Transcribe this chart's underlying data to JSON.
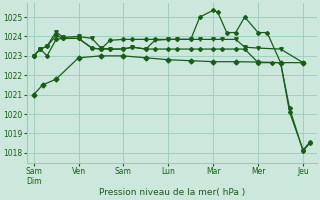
{
  "background_color": "#cce8dc",
  "grid_color": "#99ccbb",
  "line_color": "#1a5c1a",
  "xlabel": "Pression niveau de la mer( hPa )",
  "ylim": [
    1017.5,
    1025.7
  ],
  "yticks": [
    1018,
    1019,
    1020,
    1021,
    1022,
    1023,
    1024,
    1025
  ],
  "xtick_labels": [
    "Sam\nDim",
    "Ven",
    "Sam",
    "Lun",
    "Mar",
    "Mer",
    "Jeu"
  ],
  "xtick_positions": [
    0,
    1,
    2,
    3,
    4,
    5,
    6
  ],
  "series": [
    {
      "x": [
        0,
        0.2,
        0.5,
        1.0,
        1.5,
        2.0,
        2.5,
        3.0,
        3.5,
        4.0,
        4.5,
        5.0,
        5.5,
        6.0
      ],
      "y": [
        1021.0,
        1021.5,
        1021.8,
        1022.9,
        1023.0,
        1023.0,
        1022.9,
        1022.8,
        1022.75,
        1022.7,
        1022.7,
        1022.68,
        1022.65,
        1022.65
      ],
      "marker": "D",
      "markersize": 2.5
    },
    {
      "x": [
        0,
        0.15,
        0.3,
        0.5,
        0.65,
        1.0,
        1.3,
        1.5,
        1.7,
        2.0,
        2.2,
        2.5,
        2.7,
        3.0,
        3.2,
        3.5,
        3.7,
        4.0,
        4.2,
        4.5,
        4.7,
        5.0,
        5.5,
        6.0
      ],
      "y": [
        1023.0,
        1023.35,
        1023.5,
        1024.25,
        1023.95,
        1024.0,
        1023.9,
        1023.4,
        1023.35,
        1023.35,
        1023.45,
        1023.35,
        1023.8,
        1023.85,
        1023.85,
        1023.85,
        1023.85,
        1023.85,
        1023.85,
        1023.85,
        1023.45,
        1023.4,
        1023.35,
        1022.65
      ],
      "marker": "v",
      "markersize": 2.5
    },
    {
      "x": [
        0,
        0.15,
        0.3,
        0.5,
        0.65,
        1.0,
        1.3,
        1.5,
        1.7,
        2.0,
        2.2,
        2.5,
        2.7,
        3.0,
        3.2,
        3.5,
        3.7,
        4.0,
        4.1,
        4.3,
        4.5,
        4.7,
        5.0,
        5.2,
        5.5,
        5.7,
        6.0,
        6.15
      ],
      "y": [
        1023.0,
        1023.35,
        1023.0,
        1023.85,
        1023.9,
        1023.9,
        1023.4,
        1023.35,
        1023.8,
        1023.85,
        1023.85,
        1023.85,
        1023.85,
        1023.85,
        1023.85,
        1023.85,
        1025.0,
        1025.35,
        1025.25,
        1024.2,
        1024.2,
        1025.0,
        1024.2,
        1024.2,
        1022.65,
        1020.3,
        1018.1,
        1018.5
      ],
      "marker": "D",
      "markersize": 2.0
    },
    {
      "x": [
        0,
        0.15,
        0.3,
        0.5,
        0.65,
        1.0,
        1.3,
        1.5,
        1.7,
        2.0,
        2.2,
        2.5,
        2.7,
        3.0,
        3.2,
        3.5,
        3.7,
        4.0,
        4.2,
        4.5,
        4.7,
        5.0,
        5.3,
        5.5,
        5.7,
        6.0,
        6.15
      ],
      "y": [
        1023.0,
        1023.35,
        1023.5,
        1024.05,
        1023.9,
        1023.9,
        1023.4,
        1023.35,
        1023.35,
        1023.35,
        1023.45,
        1023.35,
        1023.35,
        1023.35,
        1023.35,
        1023.35,
        1023.35,
        1023.35,
        1023.35,
        1023.35,
        1023.35,
        1022.65,
        1022.65,
        1022.65,
        1020.1,
        1018.15,
        1018.55
      ],
      "marker": "D",
      "markersize": 2.0
    }
  ]
}
